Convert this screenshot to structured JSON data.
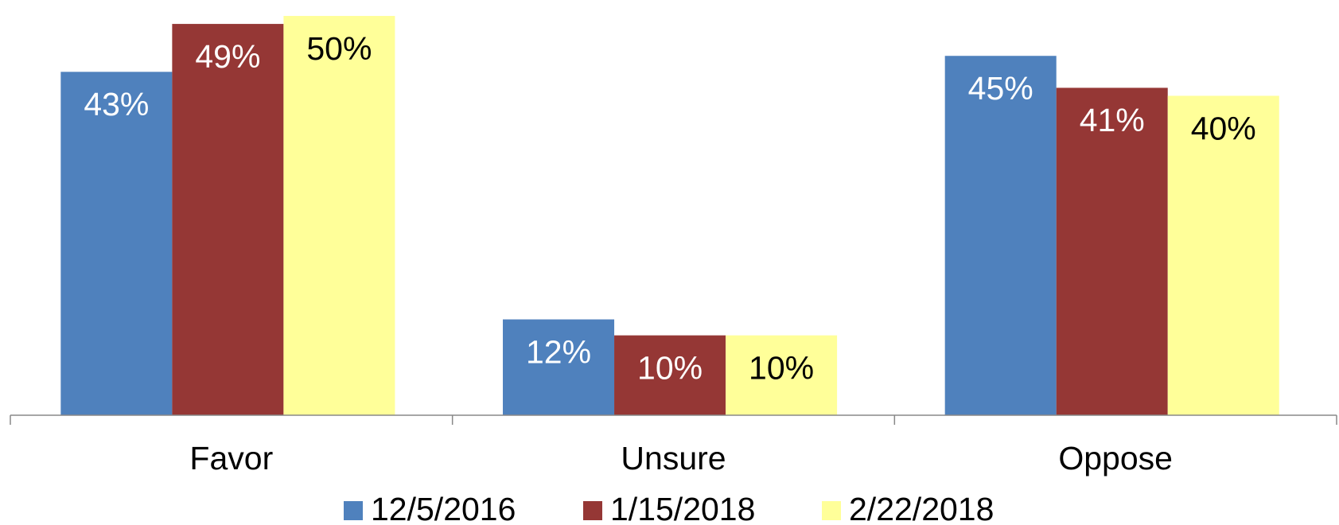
{
  "chart_data": {
    "type": "bar",
    "categories": [
      "Favor",
      "Unsure",
      "Oppose"
    ],
    "series": [
      {
        "name": "12/5/2016",
        "color": "#4f81bd",
        "values": [
          43,
          12,
          45
        ],
        "value_labels": [
          "43%",
          "12%",
          "45%"
        ]
      },
      {
        "name": "1/15/2018",
        "color": "#953735",
        "values": [
          49,
          10,
          41
        ],
        "value_labels": [
          "49%",
          "10%",
          "41%"
        ]
      },
      {
        "name": "2/22/2018",
        "color": "#ffff99",
        "values": [
          50,
          10,
          40
        ],
        "value_labels": [
          "50%",
          "10%",
          "40%"
        ]
      }
    ],
    "ylim": [
      0,
      51
    ],
    "legend": "bottom"
  }
}
